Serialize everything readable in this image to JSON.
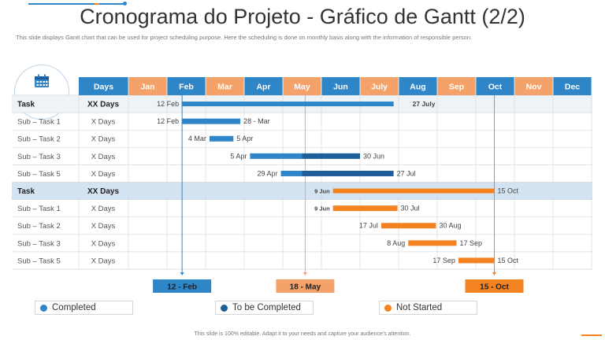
{
  "title": "Cronograma do Projeto - Gráfico de Gantt (2/2)",
  "subtitle": "This slide displays Gantt chart that can be used for project scheduling purpose. Here the scheduling is done on monthly basis along with the information of responsible person.",
  "footer": "This slide is 100% editable. Adapt it to your needs and capture your audience's attention.",
  "colors": {
    "completed": "#2e86c8",
    "to_be_completed": "#1f5f99",
    "not_started": "#f58220",
    "header_blue": "#2e86c8",
    "header_orange": "#f5a26a"
  },
  "legend": [
    {
      "label": "Completed",
      "color": "#2e86c8"
    },
    {
      "label": "To be Completed",
      "color": "#1f5f99"
    },
    {
      "label": "Not Started",
      "color": "#f58220"
    }
  ],
  "chart_data": {
    "type": "gantt",
    "header": {
      "task_col": "",
      "days_col": "Days"
    },
    "months": [
      "Jan",
      "Feb",
      "Mar",
      "Apr",
      "May",
      "Jun",
      "July",
      "Aug",
      "Sep",
      "Oct",
      "Nov",
      "Dec"
    ],
    "rows": [
      {
        "name": "Task",
        "days": "XX Days",
        "group": true,
        "start": "12 Feb",
        "end": "27 July",
        "start_val": 1.39,
        "end_val": 6.87,
        "segments": [
          {
            "from": 1.39,
            "to": 6.87,
            "status": "completed"
          }
        ]
      },
      {
        "name": "Sub – Task 1",
        "days": "X Days",
        "group": false,
        "start": "12 Feb",
        "end": "28 - Mar",
        "start_val": 1.39,
        "end_val": 2.9,
        "segments": [
          {
            "from": 1.39,
            "to": 2.9,
            "status": "completed"
          }
        ]
      },
      {
        "name": "Sub – Task 2",
        "days": "X Days",
        "group": false,
        "start": "4 Mar",
        "end": "5 Apr",
        "start_val": 2.1,
        "end_val": 3.15,
        "segments": [
          {
            "from": 2.1,
            "to": 2.72,
            "status": "completed"
          }
        ]
      },
      {
        "name": "Sub – Task 3",
        "days": "X Days",
        "group": false,
        "start": "5 Apr",
        "end": "30 Jun",
        "start_val": 3.15,
        "end_val": 6.0,
        "segments": [
          {
            "from": 3.15,
            "to": 4.5,
            "status": "completed"
          },
          {
            "from": 4.5,
            "to": 6.0,
            "status": "to_be_completed"
          }
        ]
      },
      {
        "name": "Sub – Task 5",
        "days": "X Days",
        "group": false,
        "start": "29 Apr",
        "end": "27 Jul",
        "start_val": 3.95,
        "end_val": 6.87,
        "segments": [
          {
            "from": 3.95,
            "to": 4.5,
            "status": "completed"
          },
          {
            "from": 4.5,
            "to": 6.87,
            "status": "to_be_completed"
          }
        ]
      },
      {
        "name": "Task",
        "days": "XX Days",
        "group": true,
        "start": "9 Jun",
        "end": "15 Oct",
        "start_val": 5.3,
        "end_val": 9.48,
        "segments": [
          {
            "from": 5.3,
            "to": 9.48,
            "status": "not_started"
          }
        ]
      },
      {
        "name": "Sub – Task 1",
        "days": "X Days",
        "group": false,
        "start": "9 Jun",
        "end": "30 Jul",
        "start_val": 5.3,
        "end_val": 6.97,
        "segments": [
          {
            "from": 5.3,
            "to": 6.97,
            "status": "not_started"
          }
        ]
      },
      {
        "name": "Sub – Task 2",
        "days": "X Days",
        "group": false,
        "start": "17 Jul",
        "end": "30 Aug",
        "start_val": 6.55,
        "end_val": 7.97,
        "segments": [
          {
            "from": 6.55,
            "to": 7.97,
            "status": "not_started"
          }
        ]
      },
      {
        "name": "Sub – Task 3",
        "days": "X Days",
        "group": false,
        "start": "8 Aug",
        "end": "17 Sep",
        "start_val": 7.25,
        "end_val": 8.5,
        "segments": [
          {
            "from": 7.25,
            "to": 8.5,
            "status": "not_started"
          }
        ]
      },
      {
        "name": "Sub – Task 5",
        "days": "X Days",
        "group": false,
        "start": "17 Sep",
        "end": "15 Oct",
        "start_val": 8.55,
        "end_val": 9.48,
        "segments": [
          {
            "from": 8.55,
            "to": 9.48,
            "status": "not_started"
          }
        ]
      }
    ],
    "milestones": [
      {
        "label": "12 - Feb",
        "at": 1.39,
        "color": "#2e86c8"
      },
      {
        "label": "18 - May",
        "at": 4.58,
        "color": "#f5a26a"
      },
      {
        "label": "15 - Oct",
        "at": 9.48,
        "color": "#f58220"
      }
    ]
  }
}
